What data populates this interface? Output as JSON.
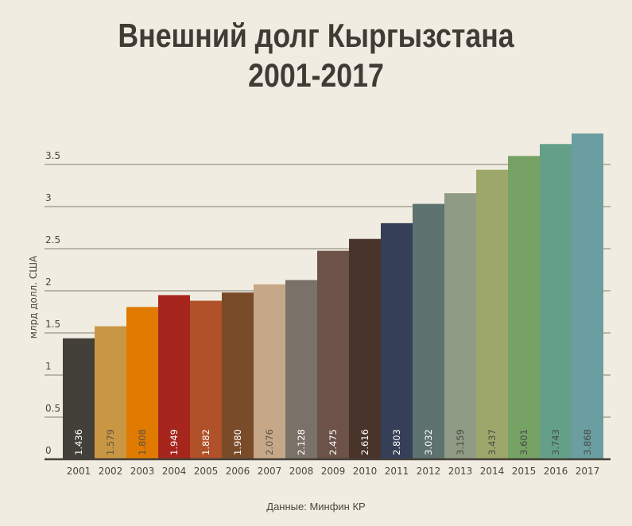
{
  "chart_data": {
    "type": "bar",
    "title": [
      "Внешний долг Кыргызстана",
      "2001-2017"
    ],
    "xlabel": "",
    "ylabel": "млрд долл. США",
    "ylim": [
      0,
      3.9
    ],
    "yticks": [
      "0",
      "0.5",
      "1",
      "1.5",
      "2",
      "2.5",
      "3",
      "3.5"
    ],
    "ytick_values": [
      0,
      0.5,
      1,
      1.5,
      2,
      2.5,
      3,
      3.5
    ],
    "grid": true,
    "categories": [
      "2001",
      "2002",
      "2003",
      "2004",
      "2005",
      "2006",
      "2007",
      "2008",
      "2009",
      "2010",
      "2011",
      "2012",
      "2013",
      "2014",
      "2015",
      "2016",
      "2017"
    ],
    "values": [
      1.436,
      1.579,
      1.808,
      1.949,
      1.882,
      1.98,
      2.076,
      2.128,
      2.475,
      2.616,
      2.803,
      3.032,
      3.159,
      3.437,
      3.601,
      3.743,
      3.868
    ],
    "value_labels": [
      "1.436",
      "1.579",
      "1.808",
      "1.949",
      "1.882",
      "1.980",
      "2.076",
      "2.128",
      "2.475",
      "2.616",
      "2.803",
      "3.032",
      "3.159",
      "3.437",
      "3.601",
      "3.743",
      "3.868"
    ],
    "colors": [
      "#434039",
      "#c99743",
      "#e07a00",
      "#a6261d",
      "#b05129",
      "#7a4b28",
      "#c6a889",
      "#7a7268",
      "#6c5248",
      "#49342b",
      "#353f57",
      "#5e7370",
      "#8f9b84",
      "#9ea76b",
      "#76a266",
      "#64a088",
      "#6b9ea0"
    ],
    "label_colors": [
      "#ffffff",
      "#5a5448",
      "#5a5448",
      "#ffffff",
      "#ffffff",
      "#ffffff",
      "#5a5448",
      "#ffffff",
      "#ffffff",
      "#ffffff",
      "#ffffff",
      "#ffffff",
      "#4a4a44",
      "#4a4a44",
      "#4a4a44",
      "#4a4a44",
      "#4a4a44"
    ]
  },
  "source": "Данные: Минфин КР"
}
